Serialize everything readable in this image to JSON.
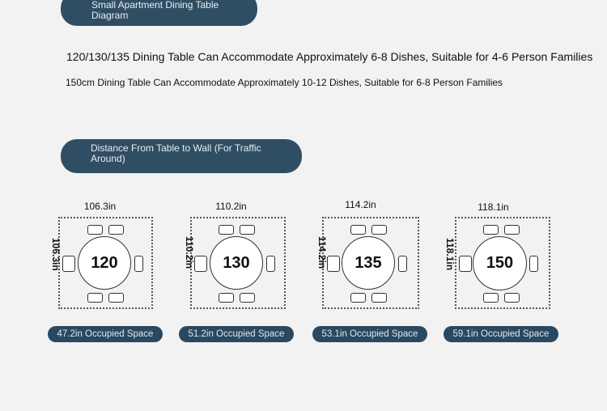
{
  "header_pill": "Small Apartment Dining Table Diagram",
  "line_one": "120/130/135 Dining Table Can Accommodate Approximately 6-8 Dishes, Suitable for 4-6 Person Families",
  "line_two": "150cm Dining Table Can Accommodate Approximately 10-12 Dishes, Suitable for 6-8 Person Families",
  "distance_pill": "Distance From Table to Wall (For Traffic Around)",
  "tables": [
    {
      "size": "120",
      "top_dim": "106.3in",
      "side_dim": "106.3in",
      "space": "47.2in Occupied Space"
    },
    {
      "size": "130",
      "top_dim": "110.2in",
      "side_dim": "110.2in",
      "space": "51.2in Occupied Space"
    },
    {
      "size": "135",
      "top_dim": "114.2in",
      "side_dim": "114.2in",
      "space": "53.1in Occupied Space"
    },
    {
      "size": "150",
      "top_dim": "118.1in",
      "side_dim": "118.1in",
      "space": "59.1in Occupied Space"
    }
  ]
}
